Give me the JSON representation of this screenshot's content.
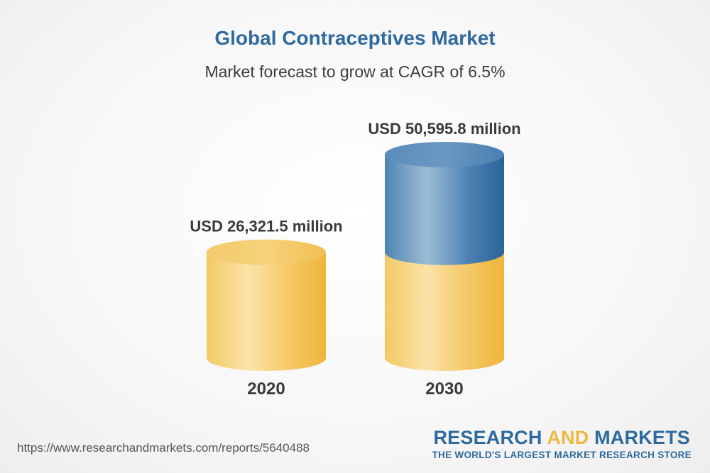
{
  "chart_data": {
    "type": "bar",
    "title": "Global Contraceptives Market",
    "subtitle": "Market forecast to grow at CAGR of 6.5%",
    "categories": [
      "2020",
      "2030"
    ],
    "values": [
      26321.5,
      50595.8
    ],
    "data_labels": [
      "USD 26,321.5 million",
      "USD 50,595.8 million"
    ],
    "unit": "USD million",
    "colors": {
      "base": "#f2c14e",
      "growth": "#2e6a9f"
    }
  },
  "footer": {
    "source_url": "https://www.researchandmarkets.com/reports/5640488",
    "brand_research": "RESEARCH",
    "brand_and": "AND",
    "brand_markets": "MARKETS",
    "brand_tagline": "THE WORLD'S LARGEST MARKET RESEARCH STORE"
  }
}
